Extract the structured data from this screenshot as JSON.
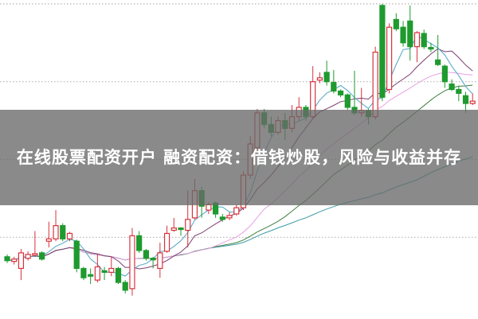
{
  "banner": {
    "title": "在线股票配资开户 融资配资：借钱炒股，风险与收益并存"
  },
  "chart_data": {
    "type": "candlestick",
    "title": "",
    "xlabel": "",
    "ylabel": "",
    "ylim": [
      -0.5,
      40.5
    ],
    "grid": {
      "horizontal": true,
      "style": "dotted",
      "levels": [
        10,
        20,
        30,
        40
      ]
    },
    "colors": {
      "up": "#d8323c",
      "down": "#1e9a2e",
      "grid": "#b4b4b4",
      "ma5": "#4fa6c4",
      "ma10": "#7d3d6e",
      "ma20": "#e8a0e4",
      "ma30": "#3f7f3f",
      "ma60": "#3a9ca6"
    },
    "moving_averages": [
      5,
      10,
      20,
      30,
      60
    ],
    "ohlc": [
      [
        7.5,
        7.0,
        7.8,
        6.7
      ],
      [
        6.9,
        7.2,
        7.5,
        6.5
      ],
      [
        6.0,
        8.0,
        8.5,
        4.5
      ],
      [
        7.3,
        7.8,
        8.2,
        7.0
      ],
      [
        7.7,
        7.9,
        10.8,
        7.5
      ],
      [
        8.0,
        7.2,
        8.2,
        7.0
      ],
      [
        9.5,
        9.8,
        12.0,
        8.7
      ],
      [
        9.8,
        11.5,
        13.5,
        9.5
      ],
      [
        11.5,
        9.8,
        11.8,
        9.5
      ],
      [
        9.8,
        10.5,
        10.7,
        9.5
      ],
      [
        9.5,
        6.0,
        9.7,
        5.5
      ],
      [
        6.0,
        4.8,
        6.2,
        4.5
      ],
      [
        5.2,
        5.0,
        6.0,
        4.0
      ],
      [
        4.5,
        6.2,
        7.8,
        4.2
      ],
      [
        5.7,
        5.5,
        6.2,
        4.5
      ],
      [
        5.5,
        6.0,
        7.5,
        5.0
      ],
      [
        6.0,
        4.2,
        6.2,
        4.0
      ],
      [
        4.2,
        3.2,
        4.5,
        2.8
      ],
      [
        3.4,
        10.2,
        11.2,
        2.5
      ],
      [
        10.2,
        8.3,
        10.8,
        8.0
      ],
      [
        8.3,
        7.3,
        8.5,
        7.0
      ],
      [
        7.3,
        7.1,
        7.5,
        6.0
      ],
      [
        6.0,
        8.0,
        9.3,
        4.8
      ],
      [
        8.2,
        10.5,
        11.5,
        8.0
      ],
      [
        10.9,
        11.2,
        12.5,
        10.7
      ],
      [
        11.2,
        11.0,
        11.3,
        10.2
      ],
      [
        10.9,
        12.3,
        16.0,
        8.7
      ],
      [
        12.5,
        16.0,
        17.5,
        12.3
      ],
      [
        16.0,
        14.0,
        16.5,
        12.5
      ],
      [
        13.5,
        14.2,
        14.5,
        13.0
      ],
      [
        14.4,
        13.0,
        14.6,
        12.5
      ],
      [
        12.6,
        12.3,
        13.0,
        12.0
      ],
      [
        12.5,
        12.8,
        13.2,
        12.2
      ],
      [
        13.0,
        13.8,
        14.2,
        12.8
      ],
      [
        13.8,
        18.0,
        18.5,
        13.5
      ],
      [
        18.0,
        22.0,
        23.0,
        17.5
      ],
      [
        21.5,
        26.0,
        26.5,
        21.0
      ],
      [
        26.0,
        24.5,
        26.5,
        24.0
      ],
      [
        24.5,
        23.5,
        25.5,
        23.0
      ],
      [
        23.5,
        25.0,
        25.5,
        23.2
      ],
      [
        25.0,
        24.0,
        26.0,
        22.5
      ],
      [
        24.0,
        25.5,
        27.0,
        23.5
      ],
      [
        25.5,
        26.7,
        28.0,
        25.0
      ],
      [
        26.7,
        25.5,
        27.0,
        25.0
      ],
      [
        25.5,
        30.0,
        32.0,
        25.2
      ],
      [
        30.2,
        30.5,
        31.2,
        29.8
      ],
      [
        31.2,
        30.0,
        32.7,
        29.5
      ],
      [
        29.9,
        28.8,
        31.5,
        28.5
      ],
      [
        28.8,
        28.3,
        29.0,
        28.0
      ],
      [
        28.3,
        26.7,
        28.5,
        26.4
      ],
      [
        26.7,
        26.0,
        31.4,
        25.7
      ],
      [
        26.0,
        26.3,
        29.2,
        25.5
      ],
      [
        26.3,
        25.5,
        26.5,
        24.5
      ],
      [
        25.5,
        33.8,
        34.5,
        25.2
      ],
      [
        39.8,
        28.0,
        40.0,
        27.5
      ],
      [
        29.0,
        37.0,
        37.5,
        28.5
      ],
      [
        38.0,
        36.8,
        38.8,
        36.5
      ],
      [
        37.0,
        35.0,
        37.8,
        34.5
      ],
      [
        37.8,
        34.5,
        39.8,
        32.7
      ],
      [
        34.5,
        36.3,
        36.5,
        32.5
      ],
      [
        36.2,
        34.5,
        36.7,
        34.2
      ],
      [
        34.4,
        34.2,
        35.0,
        33.8
      ],
      [
        32.8,
        32.2,
        36.0,
        32.0
      ],
      [
        32.0,
        30.0,
        32.2,
        29.2
      ],
      [
        29.7,
        29.0,
        30.3,
        28.8
      ],
      [
        29.0,
        28.5,
        29.5,
        27.5
      ],
      [
        28.2,
        27.2,
        28.7,
        26.0
      ],
      [
        27.2,
        27.5,
        28.5,
        27.0
      ]
    ]
  }
}
